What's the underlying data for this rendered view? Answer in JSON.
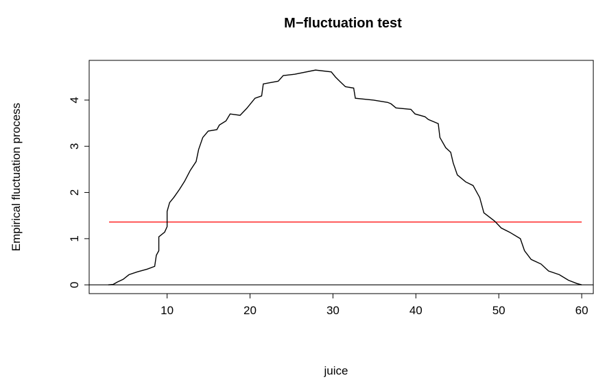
{
  "chart_data": {
    "type": "line",
    "title": "M−fluctuation test",
    "xlabel": "juice",
    "ylabel": "Empirical fluctuation process",
    "xlim": [
      0.6,
      61.4
    ],
    "ylim": [
      -0.19,
      4.86
    ],
    "xticks": [
      10,
      20,
      30,
      40,
      50,
      60
    ],
    "yticks": [
      0,
      1,
      2,
      3,
      4
    ],
    "series": [
      {
        "color": "#000000",
        "x": [
          2.9,
          3.5,
          4.0,
          4.7,
          5.4,
          6.4,
          7.6,
          8.5,
          8.7,
          9.0,
          9.0,
          9.7,
          10.0,
          10.0,
          10.3,
          10.8,
          11.5,
          12.1,
          12.8,
          13.5,
          13.8,
          14.3,
          14.96,
          16.0,
          16.3,
          17.1,
          17.6,
          18.8,
          19.6,
          20.6,
          21.4,
          21.6,
          23.4,
          24.0,
          25.4,
          27.9,
          29.8,
          30.3,
          30.8,
          31.5,
          32.5,
          32.7,
          34.9,
          36.6,
          37.0,
          37.6,
          39.4,
          39.9,
          41.1,
          41.5,
          42.7,
          42.9,
          43.6,
          44.2,
          44.5,
          45.0,
          46.0,
          46.9,
          47.7,
          48.2,
          49.5,
          50.3,
          51.3,
          52.6,
          53.1,
          53.9,
          55.1,
          56.0,
          57.3,
          58.4,
          59.4,
          60.0
        ],
        "values": [
          0,
          0.01,
          0.06,
          0.12,
          0.22,
          0.28,
          0.34,
          0.4,
          0.64,
          0.74,
          1.04,
          1.14,
          1.26,
          1.59,
          1.78,
          1.89,
          2.07,
          2.24,
          2.48,
          2.67,
          2.93,
          3.19,
          3.33,
          3.36,
          3.46,
          3.55,
          3.7,
          3.67,
          3.82,
          4.04,
          4.09,
          4.35,
          4.41,
          4.53,
          4.56,
          4.65,
          4.61,
          4.5,
          4.41,
          4.29,
          4.26,
          4.04,
          4.0,
          3.95,
          3.92,
          3.83,
          3.8,
          3.7,
          3.64,
          3.58,
          3.49,
          3.19,
          2.97,
          2.87,
          2.64,
          2.38,
          2.23,
          2.15,
          1.89,
          1.56,
          1.38,
          1.23,
          1.14,
          1.0,
          0.74,
          0.55,
          0.45,
          0.3,
          0.22,
          0.1,
          0.03,
          0
        ]
      }
    ],
    "boundary": {
      "value": 1.36,
      "xrange": [
        3,
        60
      ],
      "color": "#ff0000"
    },
    "hline": {
      "value": 0,
      "color": "#000000"
    }
  }
}
